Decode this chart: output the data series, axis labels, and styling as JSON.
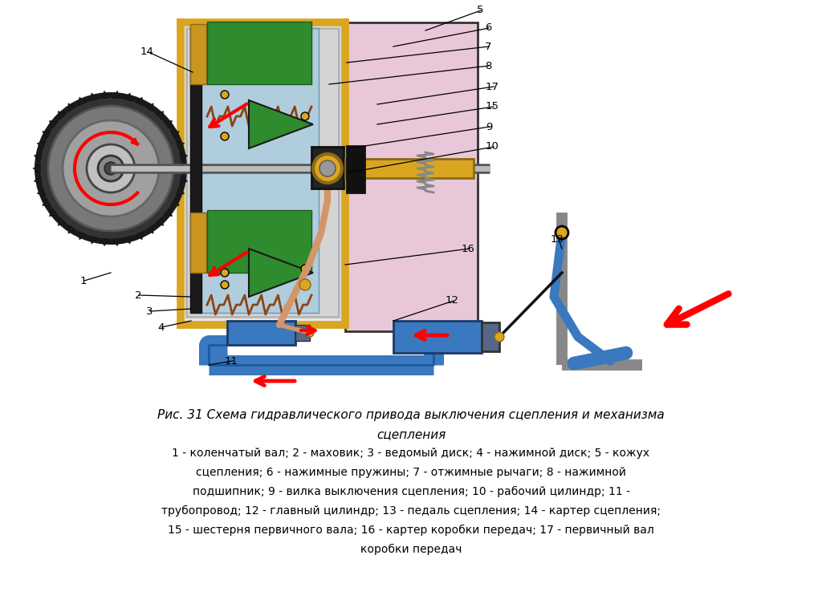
{
  "title_line1": "Рис. 31 Схема гидравлического привода выключения сцепления и механизма",
  "title_line2": "сцепления",
  "caption_line1": "1 - коленчатый вал; 2 - маховик; 3 - ведомый диск; 4 - нажимной диск; 5 - кожух",
  "caption_line2": "сцепления; 6 - нажимные пружины; 7 - отжимные рычаги; 8 - нажимной",
  "caption_line3": "подшипник; 9 - вилка выключения сцепления; 10 - рабочий цилиндр; 11 -",
  "caption_line4": "трубопровод; 12 - главный цилиндр; 13 - педаль сцепления; 14 - картер сцепления;",
  "caption_line5": "15 - шестерня первичного вала; 16 - картер коробки передач; 17 - первичный вал",
  "caption_line6": "коробки передач",
  "bg_color": "#ffffff"
}
